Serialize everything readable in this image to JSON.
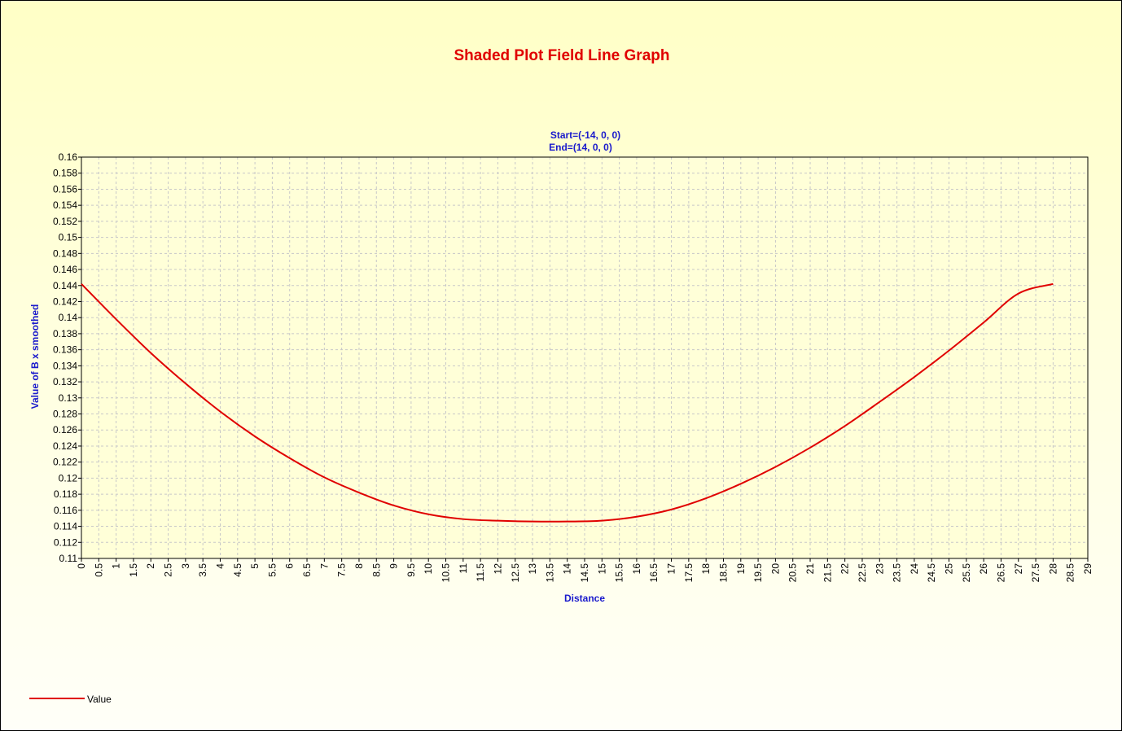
{
  "chart_data": {
    "type": "line",
    "title": "Shaded Plot Field Line Graph",
    "subtitle_lines": [
      "Start=(-14, 0, 0)",
      "End=(14, 0, 0)"
    ],
    "xlabel": "Distance",
    "ylabel": "Value of B x smoothed",
    "xlim": [
      0,
      29
    ],
    "ylim": [
      0.11,
      0.16
    ],
    "x_tick_step": 0.5,
    "y_tick_step": 0.002,
    "grid": true,
    "legend_position": "bottom-left",
    "series": [
      {
        "name": "Value",
        "color": "#e00000",
        "x": [
          0,
          1,
          2,
          3,
          4,
          5,
          6,
          7,
          8,
          9,
          10,
          11,
          12,
          13,
          14,
          15,
          16,
          17,
          18,
          19,
          20,
          21,
          22,
          23,
          24,
          25,
          26,
          27,
          28
        ],
        "y": [
          0.1442,
          0.1398,
          0.1356,
          0.1318,
          0.1283,
          0.1252,
          0.1225,
          0.1201,
          0.1182,
          0.1166,
          0.1155,
          0.1149,
          0.1147,
          0.1146,
          0.1146,
          0.1147,
          0.1152,
          0.1161,
          0.1175,
          0.1193,
          0.1214,
          0.1238,
          0.1265,
          0.1295,
          0.1326,
          0.1359,
          0.1394,
          0.143,
          0.1442
        ]
      }
    ]
  },
  "colors": {
    "title": "#e00000",
    "labels": "#1a1acc",
    "series": "#e00000",
    "grid": "#c8c8c8"
  }
}
